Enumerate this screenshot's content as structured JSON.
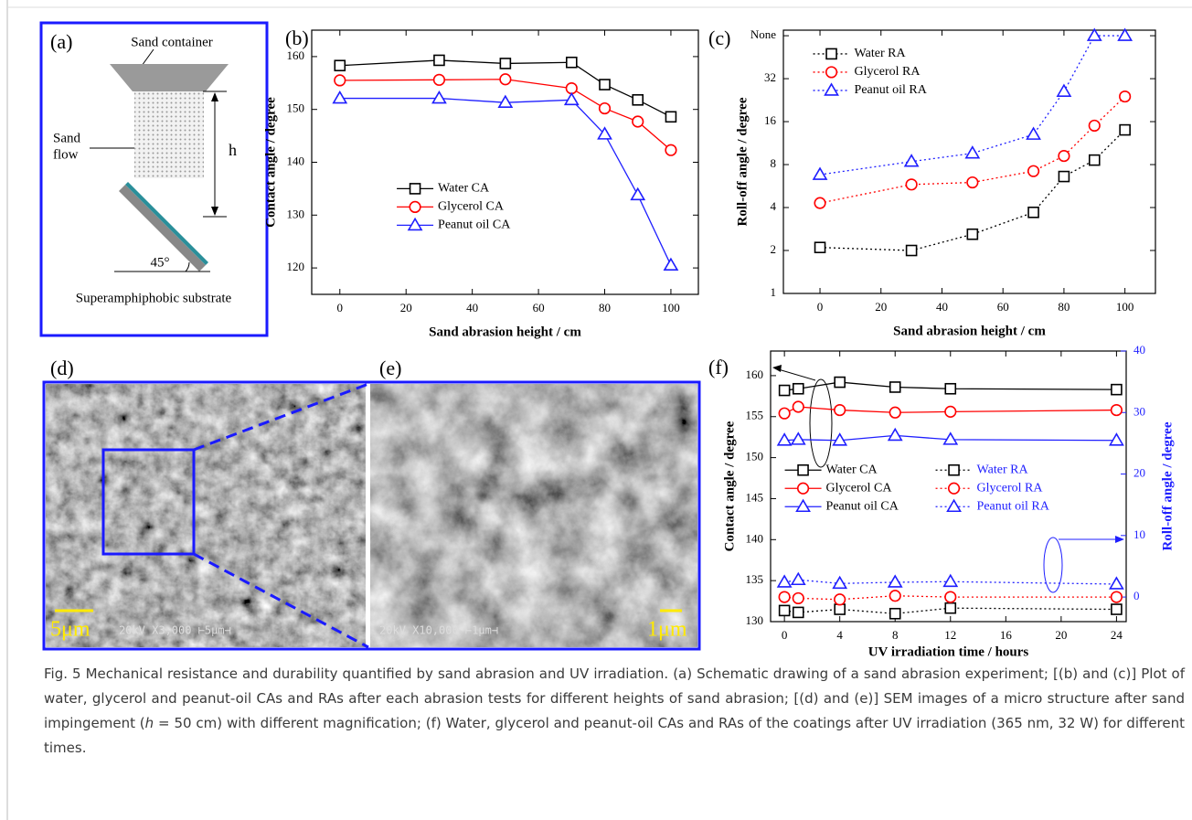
{
  "figure_a": {
    "label": "(a)",
    "container": "Sand container",
    "flow": [
      "Sand",
      "flow"
    ],
    "height": "h",
    "angle": "45°",
    "substrate": "Superamphiphobic substrate"
  },
  "chart_data": [
    {
      "type": "line",
      "label": "(b)",
      "x_label": "Sand abrasion height / cm",
      "y_label": "Contact angle / degree",
      "x": [
        0,
        30,
        50,
        70,
        80,
        90,
        100
      ],
      "xlim": [
        -8.5,
        108.3
      ],
      "xticks": [
        0,
        20,
        40,
        60,
        80,
        100
      ],
      "ylim": [
        115,
        165
      ],
      "yticks": [
        120,
        130,
        140,
        150,
        160
      ],
      "legend": "lower left",
      "series": [
        {
          "name": "Water CA",
          "color": "#000000",
          "marker": "square",
          "line_style": "solid",
          "values": [
            158.3,
            159.3,
            158.7,
            158.9,
            154.7,
            151.8,
            148.6
          ]
        },
        {
          "name": "Glycerol CA",
          "color": "#ff0000",
          "marker": "circle",
          "line_style": "solid",
          "values": [
            155.5,
            155.6,
            155.7,
            154.0,
            150.2,
            147.7,
            142.3
          ]
        },
        {
          "name": "Peanut oil CA",
          "color": "#1f1fff",
          "marker": "triangle",
          "line_style": "solid",
          "values": [
            152.1,
            152.1,
            151.3,
            151.8,
            145.3,
            133.8,
            120.5
          ]
        }
      ]
    },
    {
      "type": "line",
      "label": "(c)",
      "x_label": "Sand abrasion height / cm",
      "y_label": "Roll-off angle / degree",
      "x": [
        0,
        30,
        50,
        70,
        80,
        90,
        100
      ],
      "xlim": [
        -12,
        110
      ],
      "xticks": [
        0,
        20,
        40,
        60,
        80,
        100
      ],
      "yscale": "log",
      "ylim": [
        1,
        70
      ],
      "yticks": [
        1,
        2,
        4,
        8,
        16,
        32,
        {
          "value": 64,
          "label": "None"
        }
      ],
      "legend": "upper left",
      "series": [
        {
          "name": "Water RA",
          "color": "#000000",
          "marker": "square",
          "line_style": "dotted",
          "values": [
            2.1,
            2.0,
            2.6,
            3.7,
            6.6,
            8.6,
            14
          ]
        },
        {
          "name": "Glycerol RA",
          "color": "#ff0000",
          "marker": "circle",
          "line_style": "dotted",
          "values": [
            4.3,
            5.8,
            6.0,
            7.2,
            9.2,
            15,
            24
          ]
        },
        {
          "name": "Peanut oil RA",
          "color": "#1f1fff",
          "marker": "triangle",
          "line_style": "dotted",
          "values": [
            6.8,
            8.4,
            9.6,
            13,
            26,
            64,
            64
          ]
        }
      ]
    },
    {
      "type": "line",
      "label": "(f)",
      "x_label": "UV irradiation time / hours",
      "y_label": "Contact angle / degree",
      "y2_label": "Roll-off angle / degree",
      "y2_color": "#1f1fff",
      "x": [
        0,
        1,
        4,
        8,
        12,
        24
      ],
      "xlim": [
        -1,
        24.7
      ],
      "xticks": [
        0,
        4,
        8,
        12,
        16,
        20,
        24
      ],
      "ylim": [
        130,
        163
      ],
      "yticks": [
        130,
        135,
        140,
        145,
        150,
        155,
        160
      ],
      "y2lim": [
        -4,
        40
      ],
      "y2ticks": [
        0,
        10,
        20,
        30,
        40
      ],
      "legend": "center left",
      "legend_columns": 2,
      "series": [
        {
          "name": "Water CA",
          "color": "#000000",
          "marker": "square",
          "line_style": "solid",
          "values": [
            158.2,
            158.4,
            159.2,
            158.6,
            158.4,
            158.3
          ]
        },
        {
          "name": "Glycerol CA",
          "color": "#ff0000",
          "marker": "circle",
          "line_style": "solid",
          "values": [
            155.4,
            156.2,
            155.8,
            155.5,
            155.6,
            155.8
          ]
        },
        {
          "name": "Peanut oil CA",
          "color": "#1f1fff",
          "marker": "triangle",
          "line_style": "solid",
          "values": [
            152.1,
            152.2,
            152.1,
            152.7,
            152.2,
            152.1
          ]
        },
        {
          "name": "Water RA",
          "color": "#000000",
          "marker": "square",
          "line_style": "dotted",
          "axis": "y2",
          "values": [
            -2.2,
            -2.5,
            -2.0,
            -2.7,
            -1.8,
            -2.0
          ]
        },
        {
          "name": "Glycerol RA",
          "color": "#ff0000",
          "marker": "circle",
          "line_style": "dotted",
          "axis": "y2",
          "values": [
            0.0,
            -0.2,
            -0.4,
            0.2,
            0.0,
            0.0
          ]
        },
        {
          "name": "Peanut oil RA",
          "color": "#1f1fff",
          "marker": "triangle",
          "line_style": "dotted",
          "axis": "y2",
          "values": [
            2.4,
            2.8,
            2.2,
            2.4,
            2.5,
            2.1
          ]
        }
      ]
    }
  ],
  "images": {
    "d": {
      "label": "(d)",
      "scale": "5μm",
      "info": "20kV  X3,000  ⊢5μm⊣"
    },
    "e": {
      "label": "(e)",
      "scale": "1μm",
      "info": "20kV  X10,000  ⊢1μm⊣"
    }
  },
  "caption": [
    "Fig. 5 Mechanical resistance and durability quantified by sand abrasion and UV irradiation. (a) Schematic drawing of a sand abrasion experiment; [(b) and (c)] Plot of water, glycerol and peanut-oil CAs and RAs after each abrasion tests for different heights of sand abrasion; [(d) and (e)] SEM images of a micro structure after sand impingement (",
    "h",
    " = 50 cm) with different magnification; (f) Water, glycerol and peanut-oil CAs and RAs of the coatings after UV irradiation (365 nm, 32 W) for different times."
  ]
}
